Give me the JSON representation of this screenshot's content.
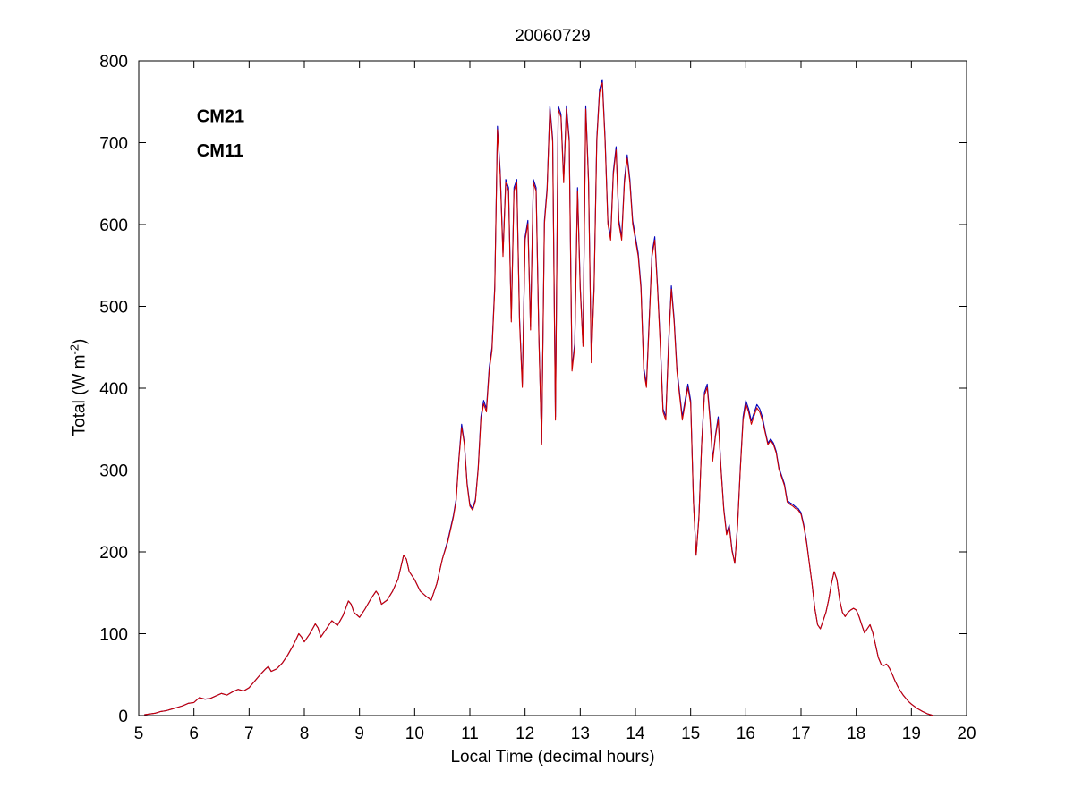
{
  "title": "20060729",
  "chart_data": {
    "type": "line",
    "title": "20060729",
    "xlabel": "Local Time (decimal hours)",
    "ylabel": "Total (W m-2)",
    "ylabel_parts": {
      "pre": "Total (W m",
      "sup": "-2",
      "post": ")"
    },
    "xlim": [
      5,
      20
    ],
    "ylim": [
      0,
      800
    ],
    "xticks": [
      5,
      6,
      7,
      8,
      9,
      10,
      11,
      12,
      13,
      14,
      15,
      16,
      17,
      18,
      19,
      20
    ],
    "yticks": [
      0,
      100,
      200,
      300,
      400,
      500,
      600,
      700,
      800
    ],
    "grid": false,
    "legend_position": "upper-left-inside",
    "legend": [
      {
        "label": "CM21",
        "color": "#0000bb",
        "x": 6.05,
        "y": 725
      },
      {
        "label": "CM11",
        "color": "#cc0000",
        "x": 6.05,
        "y": 683
      }
    ],
    "x": [
      5.1,
      5.2,
      5.3,
      5.4,
      5.5,
      5.6,
      5.7,
      5.8,
      5.9,
      6.0,
      6.1,
      6.2,
      6.3,
      6.4,
      6.5,
      6.6,
      6.7,
      6.8,
      6.9,
      7.0,
      7.1,
      7.2,
      7.3,
      7.35,
      7.4,
      7.5,
      7.6,
      7.7,
      7.8,
      7.9,
      7.95,
      8.0,
      8.1,
      8.2,
      8.25,
      8.3,
      8.4,
      8.5,
      8.6,
      8.7,
      8.8,
      8.85,
      8.9,
      9.0,
      9.1,
      9.2,
      9.3,
      9.35,
      9.4,
      9.5,
      9.6,
      9.7,
      9.8,
      9.85,
      9.9,
      10.0,
      10.1,
      10.2,
      10.3,
      10.4,
      10.5,
      10.6,
      10.7,
      10.75,
      10.8,
      10.85,
      10.9,
      10.95,
      11.0,
      11.05,
      11.1,
      11.15,
      11.2,
      11.25,
      11.3,
      11.35,
      11.4,
      11.45,
      11.5,
      11.55,
      11.6,
      11.65,
      11.7,
      11.75,
      11.8,
      11.85,
      11.9,
      11.95,
      12.0,
      12.05,
      12.1,
      12.15,
      12.2,
      12.25,
      12.3,
      12.35,
      12.4,
      12.45,
      12.5,
      12.55,
      12.6,
      12.65,
      12.7,
      12.75,
      12.8,
      12.85,
      12.9,
      12.95,
      13.0,
      13.05,
      13.1,
      13.15,
      13.2,
      13.25,
      13.3,
      13.35,
      13.4,
      13.45,
      13.5,
      13.55,
      13.6,
      13.65,
      13.7,
      13.75,
      13.8,
      13.85,
      13.9,
      13.95,
      14.0,
      14.05,
      14.1,
      14.15,
      14.2,
      14.25,
      14.3,
      14.35,
      14.4,
      14.45,
      14.5,
      14.55,
      14.6,
      14.65,
      14.7,
      14.75,
      14.8,
      14.85,
      14.9,
      14.95,
      15.0,
      15.05,
      15.1,
      15.15,
      15.2,
      15.25,
      15.3,
      15.35,
      15.4,
      15.45,
      15.5,
      15.55,
      15.6,
      15.65,
      15.7,
      15.75,
      15.8,
      15.85,
      15.9,
      15.95,
      16.0,
      16.05,
      16.1,
      16.15,
      16.2,
      16.25,
      16.3,
      16.35,
      16.4,
      16.45,
      16.5,
      16.55,
      16.6,
      16.65,
      16.7,
      16.75,
      16.8,
      16.85,
      16.9,
      16.95,
      17.0,
      17.05,
      17.1,
      17.15,
      17.2,
      17.25,
      17.3,
      17.35,
      17.4,
      17.45,
      17.5,
      17.55,
      17.6,
      17.65,
      17.7,
      17.75,
      17.8,
      17.85,
      17.9,
      17.95,
      18.0,
      18.05,
      18.1,
      18.15,
      18.2,
      18.25,
      18.3,
      18.35,
      18.4,
      18.45,
      18.5,
      18.55,
      18.6,
      18.65,
      18.7,
      18.75,
      18.8,
      18.85,
      18.9,
      18.95,
      19.0,
      19.1,
      19.2,
      19.3,
      19.4
    ],
    "series": [
      {
        "name": "CM21",
        "color": "#0000bb",
        "values": [
          1,
          2,
          3,
          5,
          6,
          8,
          10,
          12,
          15,
          16,
          22,
          20,
          21,
          24,
          27,
          25,
          29,
          32,
          30,
          34,
          42,
          50,
          57,
          60,
          54,
          57,
          64,
          74,
          86,
          100,
          96,
          90,
          100,
          112,
          107,
          96,
          106,
          116,
          110,
          122,
          140,
          136,
          126,
          120,
          130,
          142,
          152,
          147,
          136,
          141,
          152,
          167,
          196,
          191,
          176,
          166,
          152,
          146,
          141,
          161,
          191,
          214,
          244,
          264,
          314,
          356,
          334,
          284,
          258,
          253,
          264,
          303,
          365,
          385,
          375,
          425,
          450,
          525,
          720,
          665,
          565,
          655,
          645,
          485,
          645,
          655,
          485,
          405,
          585,
          605,
          475,
          655,
          645,
          465,
          333,
          605,
          645,
          745,
          705,
          365,
          745,
          735,
          655,
          745,
          705,
          425,
          455,
          645,
          525,
          455,
          745,
          655,
          435,
          525,
          705,
          765,
          777,
          705,
          605,
          585,
          665,
          695,
          605,
          585,
          655,
          685,
          655,
          605,
          585,
          565,
          525,
          425,
          405,
          485,
          565,
          585,
          525,
          455,
          375,
          365,
          455,
          525,
          485,
          425,
          395,
          365,
          385,
          405,
          385,
          263,
          196,
          243,
          333,
          395,
          405,
          365,
          313,
          343,
          365,
          303,
          253,
          223,
          233,
          203,
          186,
          233,
          303,
          365,
          385,
          375,
          360,
          370,
          380,
          375,
          365,
          348,
          333,
          338,
          333,
          323,
          303,
          293,
          283,
          263,
          260,
          258,
          255,
          253,
          248,
          233,
          213,
          186,
          161,
          131,
          111,
          106,
          116,
          126,
          141,
          161,
          176,
          166,
          141,
          126,
          121,
          126,
          129,
          131,
          129,
          121,
          111,
          101,
          106,
          111,
          101,
          86,
          71,
          63,
          61,
          63,
          58,
          51,
          43,
          36,
          30,
          25,
          21,
          17,
          14,
          9,
          5,
          2,
          0
        ]
      },
      {
        "name": "CM11",
        "color": "#cc0000",
        "values": [
          1,
          2,
          3,
          5,
          6,
          8,
          10,
          12,
          15,
          16,
          22,
          20,
          21,
          24,
          27,
          25,
          29,
          32,
          30,
          34,
          42,
          50,
          57,
          60,
          54,
          57,
          64,
          74,
          86,
          100,
          96,
          90,
          100,
          112,
          107,
          96,
          106,
          116,
          110,
          122,
          140,
          136,
          126,
          120,
          130,
          142,
          152,
          147,
          136,
          141,
          152,
          167,
          196,
          191,
          176,
          166,
          152,
          146,
          141,
          161,
          191,
          212,
          242,
          262,
          312,
          352,
          332,
          282,
          256,
          251,
          262,
          301,
          361,
          381,
          371,
          421,
          446,
          521,
          716,
          661,
          561,
          651,
          641,
          481,
          641,
          651,
          481,
          401,
          581,
          601,
          471,
          651,
          641,
          461,
          331,
          601,
          641,
          741,
          701,
          361,
          741,
          731,
          651,
          741,
          701,
          421,
          451,
          641,
          521,
          451,
          741,
          651,
          431,
          521,
          701,
          761,
          773,
          701,
          601,
          581,
          661,
          691,
          601,
          581,
          651,
          681,
          651,
          601,
          581,
          561,
          521,
          421,
          401,
          481,
          561,
          581,
          521,
          451,
          371,
          361,
          451,
          521,
          481,
          421,
          391,
          361,
          381,
          401,
          381,
          261,
          196,
          241,
          331,
          391,
          401,
          361,
          311,
          341,
          361,
          301,
          251,
          221,
          231,
          201,
          186,
          231,
          301,
          361,
          381,
          371,
          356,
          366,
          376,
          371,
          361,
          346,
          331,
          336,
          331,
          321,
          301,
          291,
          281,
          261,
          258,
          256,
          253,
          251,
          246,
          231,
          211,
          186,
          161,
          131,
          111,
          106,
          116,
          126,
          141,
          161,
          176,
          166,
          141,
          126,
          121,
          126,
          129,
          131,
          129,
          121,
          111,
          101,
          106,
          111,
          101,
          86,
          71,
          63,
          61,
          63,
          58,
          51,
          43,
          36,
          30,
          25,
          21,
          17,
          14,
          9,
          5,
          2,
          0
        ]
      }
    ]
  }
}
